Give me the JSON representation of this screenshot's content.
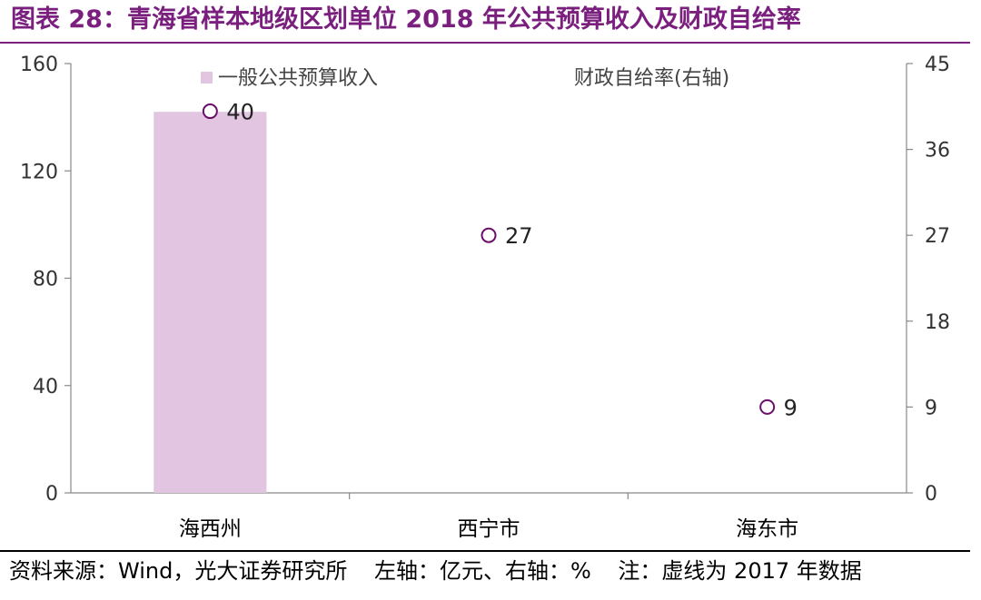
{
  "title": "图表 28：青海省样本地级区划单位 2018 年公共预算收入及财政自给率",
  "footer": {
    "source": "资料来源：Wind，光大证券研究所",
    "units": "左轴：亿元、右轴：%",
    "note": "注：虚线为 2017 年数据"
  },
  "colors": {
    "accent": "#7a1f7e",
    "bar": "#e2c6e1",
    "marker": "#6a0f6a"
  },
  "chart_data": {
    "type": "bar",
    "categories": [
      "海西州",
      "西宁市",
      "海东市"
    ],
    "series": [
      {
        "name": "一般公共预算收入",
        "type": "bar",
        "axis": "left",
        "values": [
          142,
          null,
          null
        ]
      },
      {
        "name": "财政自给率(右轴)",
        "type": "scatter",
        "axis": "right",
        "values": [
          40,
          27,
          9
        ],
        "labels": [
          "40",
          "27",
          "9"
        ]
      }
    ],
    "left_axis": {
      "ylim": [
        0,
        160
      ],
      "ticks": [
        "0",
        "40",
        "80",
        "120",
        "160"
      ]
    },
    "right_axis": {
      "ylim": [
        0,
        45
      ],
      "ticks": [
        "0",
        "9",
        "18",
        "27",
        "36",
        "45"
      ]
    },
    "grid": false,
    "legend": "top"
  }
}
